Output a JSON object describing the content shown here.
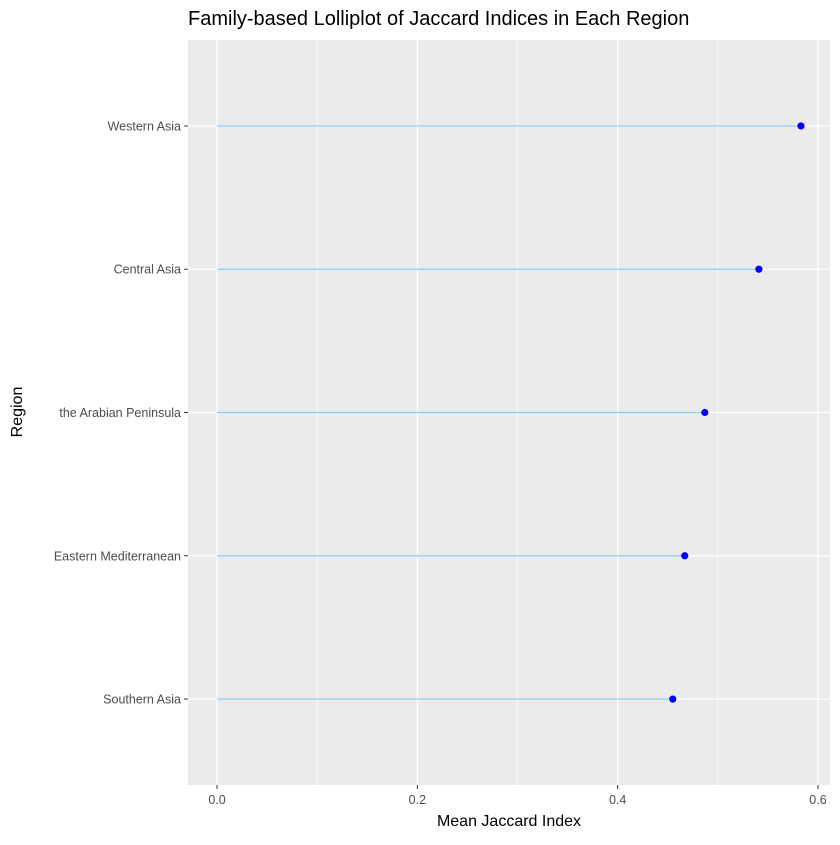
{
  "chart_data": {
    "type": "lollipop",
    "title": "Family-based Lolliplot of Jaccard Indices in Each Region",
    "xlabel": "Mean Jaccard Index",
    "ylabel": "Region",
    "categories": [
      "Southern Asia",
      "Eastern Mediterranean",
      "the Arabian Peninsula",
      "Central Asia",
      "Western Asia"
    ],
    "values": [
      0.455,
      0.467,
      0.487,
      0.541,
      0.583
    ],
    "xlim": [
      -0.029,
      0.612
    ],
    "xticks": [
      0.0,
      0.2,
      0.4,
      0.6
    ],
    "xtick_labels": [
      "0.0",
      "0.2",
      "0.4",
      "0.6"
    ],
    "grid": true,
    "colors": {
      "panel_background": "#ebebeb",
      "grid_line": "#ffffff",
      "stem": "#87ceeb",
      "point": "#0000ff",
      "tick": "#333333"
    }
  }
}
